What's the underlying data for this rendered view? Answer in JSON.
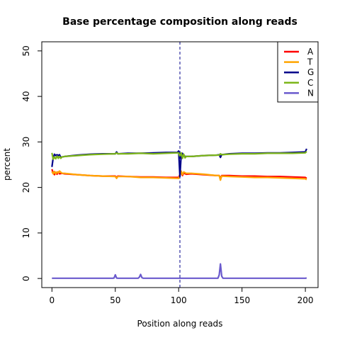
{
  "chart_data": {
    "type": "line",
    "title": "Base percentage composition along reads",
    "xlabel": "Position along reads",
    "ylabel": "percent",
    "xlim": [
      -8,
      210
    ],
    "ylim": [
      -2,
      52
    ],
    "x_ticks": [
      "0",
      "50",
      "100",
      "150",
      "200"
    ],
    "y_ticks": [
      "0",
      "10",
      "20",
      "30",
      "40",
      "50"
    ],
    "x_tick_values": [
      0,
      50,
      100,
      150,
      200
    ],
    "y_tick_values": [
      0,
      10,
      20,
      30,
      40,
      50
    ],
    "vline_x": 101,
    "legend_position": "top-right",
    "series": [
      {
        "name": "A",
        "color": "#ff0000",
        "points": [
          [
            0,
            24.0
          ],
          [
            1,
            23.2
          ],
          [
            2,
            22.8
          ],
          [
            3,
            23.3
          ],
          [
            4,
            22.9
          ],
          [
            5,
            23.4
          ],
          [
            6,
            23.0
          ],
          [
            8,
            23.1
          ],
          [
            10,
            23.0
          ],
          [
            20,
            22.8
          ],
          [
            30,
            22.6
          ],
          [
            40,
            22.5
          ],
          [
            50,
            22.5
          ],
          [
            51,
            22.2
          ],
          [
            52,
            22.5
          ],
          [
            60,
            22.4
          ],
          [
            70,
            22.3
          ],
          [
            80,
            22.3
          ],
          [
            90,
            22.2
          ],
          [
            100,
            22.2
          ],
          [
            101,
            22.8
          ],
          [
            102,
            23.3
          ],
          [
            103,
            22.6
          ],
          [
            104,
            23.2
          ],
          [
            106,
            22.9
          ],
          [
            110,
            23.0
          ],
          [
            120,
            22.8
          ],
          [
            130,
            22.6
          ],
          [
            132,
            22.6
          ],
          [
            133,
            22.0
          ],
          [
            134,
            22.6
          ],
          [
            140,
            22.6
          ],
          [
            150,
            22.5
          ],
          [
            160,
            22.5
          ],
          [
            170,
            22.4
          ],
          [
            180,
            22.4
          ],
          [
            190,
            22.3
          ],
          [
            200,
            22.2
          ],
          [
            201,
            22.0
          ]
        ]
      },
      {
        "name": "T",
        "color": "#ffa500",
        "points": [
          [
            0,
            23.5
          ],
          [
            1,
            23.0
          ],
          [
            2,
            23.5
          ],
          [
            3,
            23.0
          ],
          [
            4,
            23.4
          ],
          [
            5,
            23.2
          ],
          [
            6,
            23.6
          ],
          [
            8,
            23.1
          ],
          [
            10,
            23.1
          ],
          [
            20,
            22.8
          ],
          [
            30,
            22.6
          ],
          [
            40,
            22.5
          ],
          [
            50,
            22.4
          ],
          [
            51,
            22.0
          ],
          [
            52,
            22.4
          ],
          [
            60,
            22.4
          ],
          [
            70,
            22.2
          ],
          [
            80,
            22.2
          ],
          [
            90,
            22.1
          ],
          [
            100,
            22.0
          ],
          [
            101,
            22.6
          ],
          [
            102,
            23.6
          ],
          [
            103,
            22.8
          ],
          [
            104,
            23.4
          ],
          [
            106,
            23.1
          ],
          [
            110,
            23.1
          ],
          [
            120,
            22.9
          ],
          [
            130,
            22.6
          ],
          [
            132,
            22.6
          ],
          [
            133,
            21.6
          ],
          [
            134,
            22.5
          ],
          [
            140,
            22.4
          ],
          [
            150,
            22.3
          ],
          [
            160,
            22.2
          ],
          [
            170,
            22.2
          ],
          [
            180,
            22.1
          ],
          [
            190,
            22.0
          ],
          [
            200,
            21.9
          ],
          [
            201,
            21.7
          ]
        ]
      },
      {
        "name": "G",
        "color": "#00008b",
        "points": [
          [
            0,
            24.5
          ],
          [
            1,
            26.5
          ],
          [
            2,
            27.3
          ],
          [
            3,
            27.0
          ],
          [
            4,
            27.2
          ],
          [
            5,
            27.0
          ],
          [
            6,
            27.2
          ],
          [
            7,
            26.6
          ],
          [
            8,
            26.7
          ],
          [
            10,
            26.8
          ],
          [
            20,
            27.1
          ],
          [
            30,
            27.3
          ],
          [
            40,
            27.4
          ],
          [
            50,
            27.4
          ],
          [
            51,
            27.8
          ],
          [
            52,
            27.4
          ],
          [
            60,
            27.5
          ],
          [
            70,
            27.5
          ],
          [
            80,
            27.6
          ],
          [
            90,
            27.7
          ],
          [
            99,
            27.7
          ],
          [
            100,
            28.0
          ],
          [
            101,
            22.4
          ],
          [
            102,
            27.2
          ],
          [
            103,
            27.5
          ],
          [
            104,
            26.9
          ],
          [
            106,
            26.8
          ],
          [
            110,
            26.8
          ],
          [
            120,
            27.0
          ],
          [
            130,
            27.1
          ],
          [
            132,
            27.2
          ],
          [
            133,
            26.6
          ],
          [
            134,
            27.2
          ],
          [
            140,
            27.4
          ],
          [
            150,
            27.5
          ],
          [
            160,
            27.5
          ],
          [
            170,
            27.6
          ],
          [
            180,
            27.6
          ],
          [
            190,
            27.7
          ],
          [
            200,
            27.8
          ],
          [
            201,
            28.5
          ]
        ]
      },
      {
        "name": "C",
        "color": "#7cb518",
        "points": [
          [
            0,
            27.6
          ],
          [
            1,
            26.2
          ],
          [
            2,
            26.7
          ],
          [
            3,
            26.3
          ],
          [
            4,
            26.9
          ],
          [
            5,
            26.4
          ],
          [
            6,
            26.8
          ],
          [
            7,
            26.4
          ],
          [
            8,
            26.7
          ],
          [
            10,
            26.8
          ],
          [
            20,
            27.0
          ],
          [
            30,
            27.2
          ],
          [
            40,
            27.3
          ],
          [
            50,
            27.4
          ],
          [
            51,
            27.6
          ],
          [
            52,
            27.4
          ],
          [
            60,
            27.4
          ],
          [
            70,
            27.5
          ],
          [
            80,
            27.4
          ],
          [
            90,
            27.5
          ],
          [
            99,
            27.6
          ],
          [
            100,
            27.6
          ],
          [
            101,
            26.8
          ],
          [
            102,
            27.6
          ],
          [
            103,
            26.4
          ],
          [
            104,
            27.3
          ],
          [
            105,
            26.5
          ],
          [
            106,
            26.8
          ],
          [
            110,
            26.8
          ],
          [
            120,
            27.0
          ],
          [
            130,
            27.1
          ],
          [
            132,
            27.1
          ],
          [
            133,
            27.4
          ],
          [
            134,
            27.2
          ],
          [
            140,
            27.3
          ],
          [
            150,
            27.4
          ],
          [
            160,
            27.4
          ],
          [
            170,
            27.5
          ],
          [
            180,
            27.5
          ],
          [
            190,
            27.5
          ],
          [
            200,
            27.6
          ],
          [
            201,
            27.9
          ]
        ]
      },
      {
        "name": "N",
        "color": "#6a5acd",
        "points": [
          [
            0,
            0.05
          ],
          [
            48,
            0.05
          ],
          [
            49,
            0.1
          ],
          [
            50,
            0.8
          ],
          [
            51,
            0.1
          ],
          [
            52,
            0.05
          ],
          [
            68,
            0.05
          ],
          [
            69,
            0.3
          ],
          [
            70,
            0.9
          ],
          [
            71,
            0.2
          ],
          [
            72,
            0.05
          ],
          [
            131,
            0.05
          ],
          [
            132,
            0.8
          ],
          [
            133,
            3.2
          ],
          [
            134,
            0.5
          ],
          [
            135,
            0.05
          ],
          [
            200,
            0.05
          ],
          [
            201,
            0.1
          ]
        ]
      }
    ]
  }
}
